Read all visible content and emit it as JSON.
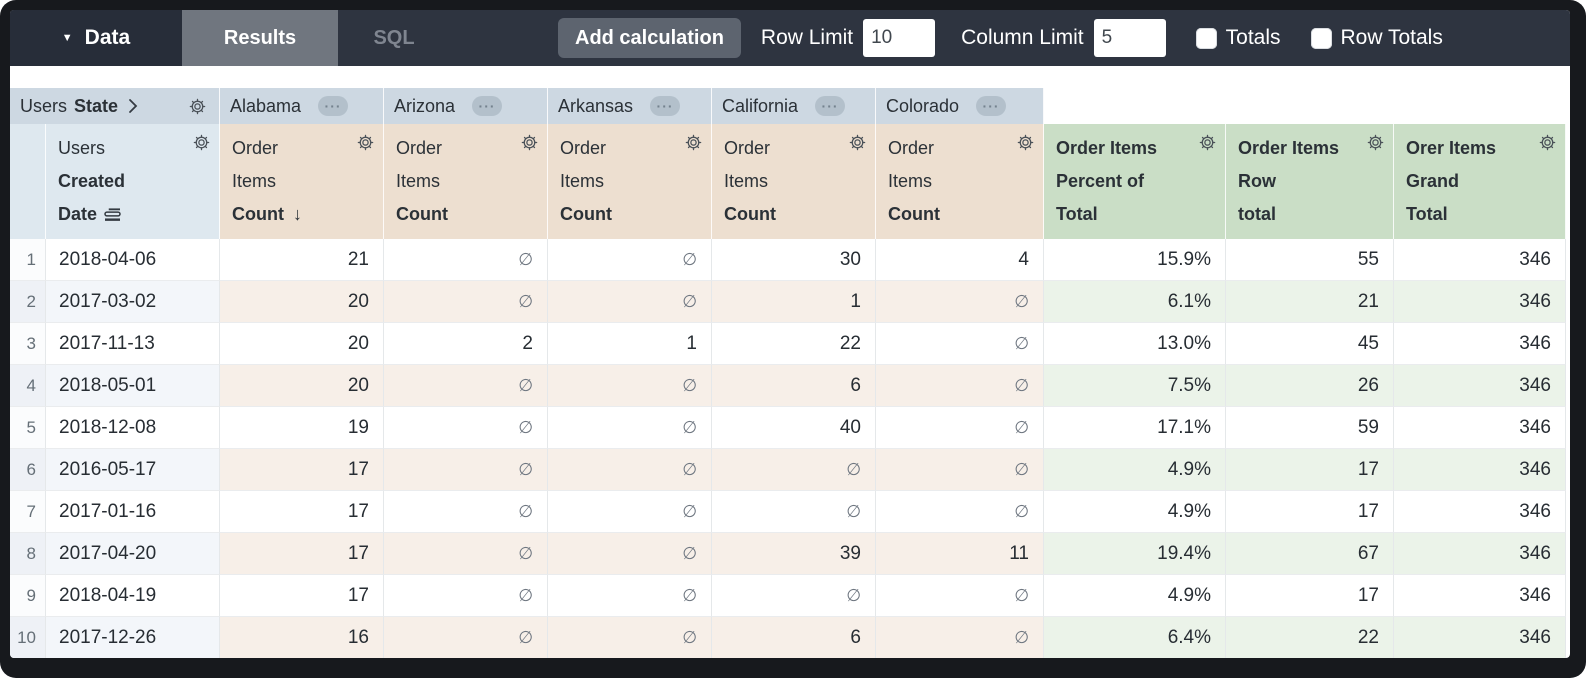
{
  "icons": {
    "caret_down": "▼",
    "chevron_right": "❯",
    "sort_desc": "↓",
    "null_symbol": "∅",
    "more": "···"
  },
  "toolbar": {
    "data_tab": "Data",
    "results_tab": "Results",
    "sql_tab": "SQL",
    "add_calculation": "Add calculation",
    "row_limit_label": "Row Limit",
    "row_limit_value": "10",
    "column_limit_label": "Column Limit",
    "column_limit_value": "5",
    "totals_label": "Totals",
    "row_totals_label": "Row Totals"
  },
  "pivot": {
    "view": "Users",
    "field": "State",
    "values": [
      "Alabama",
      "Arizona",
      "Arkansas",
      "California",
      "Colorado"
    ]
  },
  "headers": {
    "dimension": {
      "lines": [
        {
          "t": "Users",
          "bold": false
        },
        {
          "t": "Created",
          "bold": true
        },
        {
          "t": "Date",
          "bold": true,
          "icon": "rows-icon"
        }
      ]
    },
    "measures": [
      {
        "lines": [
          "Order",
          "Items",
          "Count"
        ],
        "sorted": true
      },
      {
        "lines": [
          "Order",
          "Items",
          "Count"
        ],
        "sorted": false
      },
      {
        "lines": [
          "Order",
          "Items",
          "Count"
        ],
        "sorted": false
      },
      {
        "lines": [
          "Order",
          "Items",
          "Count"
        ],
        "sorted": false
      },
      {
        "lines": [
          "Order",
          "Items",
          "Count"
        ],
        "sorted": false
      }
    ],
    "calcs": [
      {
        "lines": [
          "Order Items",
          "Percent of",
          "Total"
        ]
      },
      {
        "lines": [
          "Order Items",
          "Row",
          "total"
        ]
      },
      {
        "lines": [
          "Orer Items",
          "Grand",
          "Total"
        ]
      }
    ]
  },
  "table": {
    "rows": [
      {
        "n": "1",
        "date": "2018-04-06",
        "values": [
          "21",
          "∅",
          "∅",
          "30",
          "4"
        ],
        "pct": "15.9%",
        "row_total": "55",
        "grand_total": "346"
      },
      {
        "n": "2",
        "date": "2017-03-02",
        "values": [
          "20",
          "∅",
          "∅",
          "1",
          "∅"
        ],
        "pct": "6.1%",
        "row_total": "21",
        "grand_total": "346"
      },
      {
        "n": "3",
        "date": "2017-11-13",
        "values": [
          "20",
          "2",
          "1",
          "22",
          "∅"
        ],
        "pct": "13.0%",
        "row_total": "45",
        "grand_total": "346"
      },
      {
        "n": "4",
        "date": "2018-05-01",
        "values": [
          "20",
          "∅",
          "∅",
          "6",
          "∅"
        ],
        "pct": "7.5%",
        "row_total": "26",
        "grand_total": "346"
      },
      {
        "n": "5",
        "date": "2018-12-08",
        "values": [
          "19",
          "∅",
          "∅",
          "40",
          "∅"
        ],
        "pct": "17.1%",
        "row_total": "59",
        "grand_total": "346"
      },
      {
        "n": "6",
        "date": "2016-05-17",
        "values": [
          "17",
          "∅",
          "∅",
          "∅",
          "∅"
        ],
        "pct": "4.9%",
        "row_total": "17",
        "grand_total": "346"
      },
      {
        "n": "7",
        "date": "2017-01-16",
        "values": [
          "17",
          "∅",
          "∅",
          "∅",
          "∅"
        ],
        "pct": "4.9%",
        "row_total": "17",
        "grand_total": "346"
      },
      {
        "n": "8",
        "date": "2017-04-20",
        "values": [
          "17",
          "∅",
          "∅",
          "39",
          "11"
        ],
        "pct": "19.4%",
        "row_total": "67",
        "grand_total": "346"
      },
      {
        "n": "9",
        "date": "2018-04-19",
        "values": [
          "17",
          "∅",
          "∅",
          "∅",
          "∅"
        ],
        "pct": "4.9%",
        "row_total": "17",
        "grand_total": "346"
      },
      {
        "n": "10",
        "date": "2017-12-26",
        "values": [
          "16",
          "∅",
          "∅",
          "6",
          "∅"
        ],
        "pct": "6.4%",
        "row_total": "22",
        "grand_total": "346"
      }
    ]
  },
  "colors": {
    "topbar": "#2e3440",
    "pivot_header": "#cdd8e2",
    "dimension_header": "#dee8ef",
    "measure_header": "#eddfd0",
    "calc_header": "#cadec6",
    "measure_stripe": "#f7efe8",
    "calc_stripe": "#ebf3e9",
    "dimension_stripe": "#f3f6fa"
  }
}
